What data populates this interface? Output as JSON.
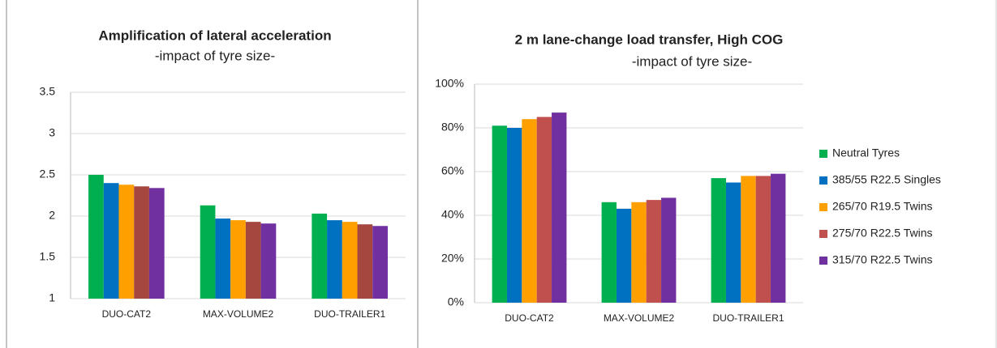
{
  "chart_data": [
    {
      "type": "bar",
      "title": "Amplification of lateral acceleration",
      "subtitle": "-impact of tyre size-",
      "categories": [
        "DUO-CAT2",
        "MAX-VOLUME2",
        "DUO-TRAILER1"
      ],
      "series": [
        {
          "color": "#00b050",
          "values": [
            2.5,
            2.13,
            2.03
          ]
        },
        {
          "color": "#0070c0",
          "values": [
            2.4,
            1.97,
            1.95
          ]
        },
        {
          "color": "#ffa000",
          "values": [
            2.38,
            1.95,
            1.93
          ]
        },
        {
          "color": "#a5463f",
          "values": [
            2.36,
            1.93,
            1.9
          ]
        },
        {
          "color": "#7030a0",
          "values": [
            2.34,
            1.91,
            1.88
          ]
        }
      ],
      "ylim": [
        1,
        3.5
      ],
      "yticks": [
        1,
        1.5,
        2,
        2.5,
        3,
        3.5
      ],
      "grid": true
    },
    {
      "type": "bar",
      "title": "2 m lane-change load transfer, High COG",
      "subtitle": "-impact of tyre size-",
      "categories": [
        "DUO-CAT2",
        "MAX-VOLUME2",
        "DUO-TRAILER1"
      ],
      "series": [
        {
          "name": "Neutral Tyres",
          "color": "#00b050",
          "values": [
            81,
            46,
            57
          ]
        },
        {
          "name": "385/55 R22.5 Singles",
          "color": "#0070c0",
          "values": [
            80,
            43,
            55
          ]
        },
        {
          "name": "265/70 R19.5 Twins",
          "color": "#ffa000",
          "values": [
            84,
            46,
            58
          ]
        },
        {
          "name": "275/70 R22.5 Twins",
          "color": "#c0504d",
          "values": [
            85,
            47,
            58
          ]
        },
        {
          "name": "315/70 R22.5 Twins",
          "color": "#7030a0",
          "values": [
            87,
            48,
            59
          ]
        }
      ],
      "ylim": [
        0,
        100
      ],
      "yticks": [
        {
          "value": 0,
          "label": "0%"
        },
        {
          "value": 20,
          "label": "20%"
        },
        {
          "value": 40,
          "label": "40%"
        },
        {
          "value": 60,
          "label": "60%"
        },
        {
          "value": 80,
          "label": "80%"
        },
        {
          "value": 100,
          "label": "100%"
        }
      ],
      "grid": true,
      "legend": "right"
    }
  ]
}
